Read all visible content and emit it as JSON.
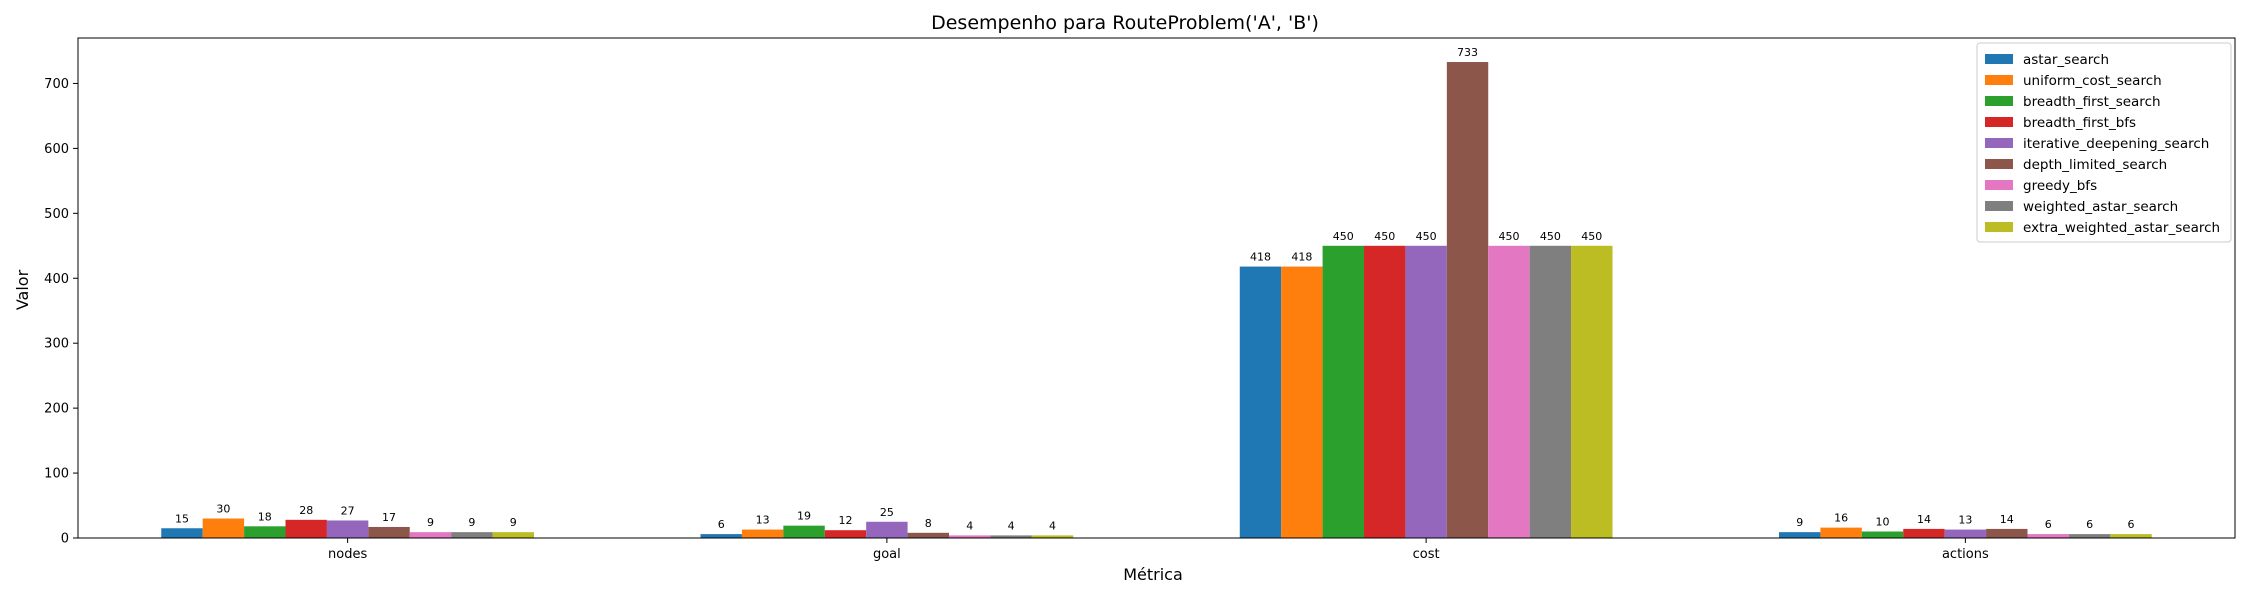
{
  "chart_data": {
    "type": "bar",
    "title": "Desempenho para RouteProblem('A', 'B')",
    "xlabel": "Métrica",
    "ylabel": "Valor",
    "categories": [
      "nodes",
      "goal",
      "cost",
      "actions"
    ],
    "ylim": [
      0,
      770
    ],
    "yticks": [
      0,
      100,
      200,
      300,
      400,
      500,
      600,
      700
    ],
    "legend_position": "top-right",
    "series": [
      {
        "name": "astar_search",
        "color": "#1f77b4",
        "values": [
          15,
          6,
          418,
          9
        ]
      },
      {
        "name": "uniform_cost_search",
        "color": "#ff7f0e",
        "values": [
          30,
          13,
          418,
          16
        ]
      },
      {
        "name": "breadth_first_search",
        "color": "#2ca02c",
        "values": [
          18,
          19,
          450,
          10
        ]
      },
      {
        "name": "breadth_first_bfs",
        "color": "#d62728",
        "values": [
          28,
          12,
          450,
          14
        ]
      },
      {
        "name": "iterative_deepening_search",
        "color": "#9467bd",
        "values": [
          27,
          25,
          450,
          13
        ]
      },
      {
        "name": "depth_limited_search",
        "color": "#8c564b",
        "values": [
          17,
          8,
          733,
          14
        ]
      },
      {
        "name": "greedy_bfs",
        "color": "#e377c2",
        "values": [
          9,
          4,
          450,
          6
        ]
      },
      {
        "name": "weighted_astar_search",
        "color": "#7f7f7f",
        "values": [
          9,
          4,
          450,
          6
        ]
      },
      {
        "name": "extra_weighted_astar_search",
        "color": "#bcbd22",
        "values": [
          9,
          4,
          450,
          6
        ]
      }
    ]
  }
}
